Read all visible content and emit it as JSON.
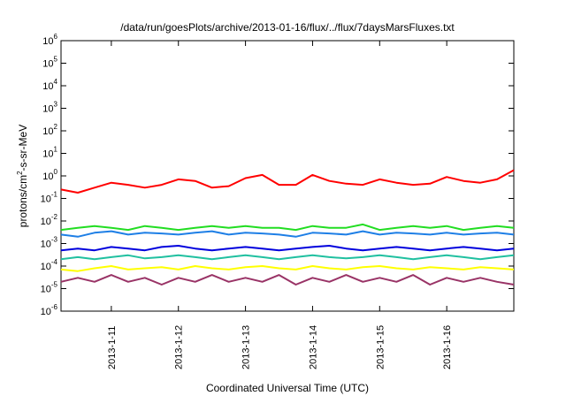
{
  "chart_data": {
    "type": "line",
    "title": "/data/run/goesPlots/archive/2013-01-16/flux/../flux/7daysMarsFluxes.txt",
    "xlabel": "Coordinated Universal Time (UTC)",
    "ylabel": {
      "prefix": "protons/cm",
      "sup": "2",
      "suffix": "-s-sr-MeV"
    },
    "xlim": [
      "2013-01-10 06:00",
      "2013-01-17 00:00"
    ],
    "ylim": [
      1e-06,
      1000000
    ],
    "yscale": "log",
    "grid": false,
    "legend": "none",
    "x_ticks": [
      "2013-1-11",
      "2013-1-12",
      "2013-1-13",
      "2013-1-14",
      "2013-1-15",
      "2013-1-16"
    ],
    "y_ticks": [
      {
        "base": "10",
        "exp": "-6"
      },
      {
        "base": "10",
        "exp": "-5"
      },
      {
        "base": "10",
        "exp": "-4"
      },
      {
        "base": "10",
        "exp": "-3"
      },
      {
        "base": "10",
        "exp": "-2"
      },
      {
        "base": "10",
        "exp": "-1"
      },
      {
        "base": "10",
        "exp": "0"
      },
      {
        "base": "10",
        "exp": "1"
      },
      {
        "base": "10",
        "exp": "2"
      },
      {
        "base": "10",
        "exp": "3"
      },
      {
        "base": "10",
        "exp": "4"
      },
      {
        "base": "10",
        "exp": "5"
      },
      {
        "base": "10",
        "exp": "6"
      }
    ],
    "series": [
      {
        "color": "#ff0000",
        "x": [
          "2013-01-10 06:00",
          "2013-01-10 12:00",
          "2013-01-10 18:00",
          "2013-01-11 00:00",
          "2013-01-11 06:00",
          "2013-01-11 12:00",
          "2013-01-11 18:00",
          "2013-01-12 00:00",
          "2013-01-12 06:00",
          "2013-01-12 12:00",
          "2013-01-12 18:00",
          "2013-01-13 00:00",
          "2013-01-13 06:00",
          "2013-01-13 12:00",
          "2013-01-13 18:00",
          "2013-01-14 00:00",
          "2013-01-14 06:00",
          "2013-01-14 12:00",
          "2013-01-14 18:00",
          "2013-01-15 00:00",
          "2013-01-15 06:00",
          "2013-01-15 12:00",
          "2013-01-15 18:00",
          "2013-01-16 00:00",
          "2013-01-16 06:00",
          "2013-01-16 12:00",
          "2013-01-16 18:00",
          "2013-01-17 00:00"
        ],
        "values": [
          0.25,
          0.18,
          0.3,
          0.5,
          0.4,
          0.3,
          0.4,
          0.7,
          0.6,
          0.3,
          0.35,
          0.8,
          1.1,
          0.4,
          0.4,
          1.1,
          0.6,
          0.45,
          0.4,
          0.7,
          0.5,
          0.4,
          0.45,
          0.9,
          0.6,
          0.5,
          0.7,
          1.8
        ]
      },
      {
        "color": "#22dd22",
        "x": [
          "2013-01-10 06:00",
          "2013-01-10 12:00",
          "2013-01-10 18:00",
          "2013-01-11 00:00",
          "2013-01-11 06:00",
          "2013-01-11 12:00",
          "2013-01-11 18:00",
          "2013-01-12 00:00",
          "2013-01-12 06:00",
          "2013-01-12 12:00",
          "2013-01-12 18:00",
          "2013-01-13 00:00",
          "2013-01-13 06:00",
          "2013-01-13 12:00",
          "2013-01-13 18:00",
          "2013-01-14 00:00",
          "2013-01-14 06:00",
          "2013-01-14 12:00",
          "2013-01-14 18:00",
          "2013-01-15 00:00",
          "2013-01-15 06:00",
          "2013-01-15 12:00",
          "2013-01-15 18:00",
          "2013-01-16 00:00",
          "2013-01-16 06:00",
          "2013-01-16 12:00",
          "2013-01-16 18:00",
          "2013-01-17 00:00"
        ],
        "values": [
          0.004,
          0.005,
          0.006,
          0.005,
          0.004,
          0.006,
          0.005,
          0.004,
          0.005,
          0.006,
          0.005,
          0.006,
          0.005,
          0.005,
          0.004,
          0.006,
          0.005,
          0.005,
          0.007,
          0.004,
          0.005,
          0.006,
          0.005,
          0.006,
          0.004,
          0.005,
          0.006,
          0.005
        ]
      },
      {
        "color": "#1e7fe6",
        "x": [
          "2013-01-10 06:00",
          "2013-01-10 12:00",
          "2013-01-10 18:00",
          "2013-01-11 00:00",
          "2013-01-11 06:00",
          "2013-01-11 12:00",
          "2013-01-11 18:00",
          "2013-01-12 00:00",
          "2013-01-12 06:00",
          "2013-01-12 12:00",
          "2013-01-12 18:00",
          "2013-01-13 00:00",
          "2013-01-13 06:00",
          "2013-01-13 12:00",
          "2013-01-13 18:00",
          "2013-01-14 00:00",
          "2013-01-14 06:00",
          "2013-01-14 12:00",
          "2013-01-14 18:00",
          "2013-01-15 00:00",
          "2013-01-15 06:00",
          "2013-01-15 12:00",
          "2013-01-15 18:00",
          "2013-01-16 00:00",
          "2013-01-16 06:00",
          "2013-01-16 12:00",
          "2013-01-16 18:00",
          "2013-01-17 00:00"
        ],
        "values": [
          0.0025,
          0.002,
          0.003,
          0.0035,
          0.0025,
          0.003,
          0.0028,
          0.0025,
          0.003,
          0.0035,
          0.0025,
          0.003,
          0.0028,
          0.0025,
          0.002,
          0.003,
          0.0028,
          0.0025,
          0.0035,
          0.0025,
          0.003,
          0.0028,
          0.0025,
          0.003,
          0.0025,
          0.0028,
          0.003,
          0.0025
        ]
      },
      {
        "color": "#0000dd",
        "x": [
          "2013-01-10 06:00",
          "2013-01-10 12:00",
          "2013-01-10 18:00",
          "2013-01-11 00:00",
          "2013-01-11 06:00",
          "2013-01-11 12:00",
          "2013-01-11 18:00",
          "2013-01-12 00:00",
          "2013-01-12 06:00",
          "2013-01-12 12:00",
          "2013-01-12 18:00",
          "2013-01-13 00:00",
          "2013-01-13 06:00",
          "2013-01-13 12:00",
          "2013-01-13 18:00",
          "2013-01-14 00:00",
          "2013-01-14 06:00",
          "2013-01-14 12:00",
          "2013-01-14 18:00",
          "2013-01-15 00:00",
          "2013-01-15 06:00",
          "2013-01-15 12:00",
          "2013-01-15 18:00",
          "2013-01-16 00:00",
          "2013-01-16 06:00",
          "2013-01-16 12:00",
          "2013-01-16 18:00",
          "2013-01-17 00:00"
        ],
        "values": [
          0.0005,
          0.0006,
          0.0005,
          0.0007,
          0.0006,
          0.0005,
          0.0007,
          0.0008,
          0.0006,
          0.0005,
          0.0006,
          0.0007,
          0.0006,
          0.0005,
          0.0006,
          0.0007,
          0.0008,
          0.0006,
          0.0005,
          0.0006,
          0.0007,
          0.0006,
          0.0005,
          0.0006,
          0.0007,
          0.0006,
          0.0005,
          0.0006
        ]
      },
      {
        "color": "#20c0a0",
        "x": [
          "2013-01-10 06:00",
          "2013-01-10 12:00",
          "2013-01-10 18:00",
          "2013-01-11 00:00",
          "2013-01-11 06:00",
          "2013-01-11 12:00",
          "2013-01-11 18:00",
          "2013-01-12 00:00",
          "2013-01-12 06:00",
          "2013-01-12 12:00",
          "2013-01-12 18:00",
          "2013-01-13 00:00",
          "2013-01-13 06:00",
          "2013-01-13 12:00",
          "2013-01-13 18:00",
          "2013-01-14 00:00",
          "2013-01-14 06:00",
          "2013-01-14 12:00",
          "2013-01-14 18:00",
          "2013-01-15 00:00",
          "2013-01-15 06:00",
          "2013-01-15 12:00",
          "2013-01-15 18:00",
          "2013-01-16 00:00",
          "2013-01-16 06:00",
          "2013-01-16 12:00",
          "2013-01-16 18:00",
          "2013-01-17 00:00"
        ],
        "values": [
          0.0002,
          0.00025,
          0.0002,
          0.00025,
          0.0003,
          0.00022,
          0.00025,
          0.0003,
          0.00025,
          0.0002,
          0.00025,
          0.0003,
          0.00025,
          0.0002,
          0.00025,
          0.0003,
          0.00025,
          0.00022,
          0.00025,
          0.0003,
          0.00025,
          0.0002,
          0.00025,
          0.0003,
          0.00025,
          0.0002,
          0.00025,
          0.0003
        ]
      },
      {
        "color": "#ffff00",
        "x": [
          "2013-01-10 06:00",
          "2013-01-10 12:00",
          "2013-01-10 18:00",
          "2013-01-11 00:00",
          "2013-01-11 06:00",
          "2013-01-11 12:00",
          "2013-01-11 18:00",
          "2013-01-12 00:00",
          "2013-01-12 06:00",
          "2013-01-12 12:00",
          "2013-01-12 18:00",
          "2013-01-13 00:00",
          "2013-01-13 06:00",
          "2013-01-13 12:00",
          "2013-01-13 18:00",
          "2013-01-14 00:00",
          "2013-01-14 06:00",
          "2013-01-14 12:00",
          "2013-01-14 18:00",
          "2013-01-15 00:00",
          "2013-01-15 06:00",
          "2013-01-15 12:00",
          "2013-01-15 18:00",
          "2013-01-16 00:00",
          "2013-01-16 06:00",
          "2013-01-16 12:00",
          "2013-01-16 18:00",
          "2013-01-17 00:00"
        ],
        "values": [
          7e-05,
          6e-05,
          8e-05,
          0.0001,
          7e-05,
          8e-05,
          9e-05,
          7e-05,
          0.0001,
          8e-05,
          7e-05,
          9e-05,
          0.0001,
          8e-05,
          7e-05,
          0.0001,
          8e-05,
          7e-05,
          9e-05,
          0.0001,
          8e-05,
          7e-05,
          9e-05,
          8e-05,
          7e-05,
          9e-05,
          8e-05,
          7e-05
        ]
      },
      {
        "color": "#993366",
        "x": [
          "2013-01-10 06:00",
          "2013-01-10 12:00",
          "2013-01-10 18:00",
          "2013-01-11 00:00",
          "2013-01-11 06:00",
          "2013-01-11 12:00",
          "2013-01-11 18:00",
          "2013-01-12 00:00",
          "2013-01-12 06:00",
          "2013-01-12 12:00",
          "2013-01-12 18:00",
          "2013-01-13 00:00",
          "2013-01-13 06:00",
          "2013-01-13 12:00",
          "2013-01-13 18:00",
          "2013-01-14 00:00",
          "2013-01-14 06:00",
          "2013-01-14 12:00",
          "2013-01-14 18:00",
          "2013-01-15 00:00",
          "2013-01-15 06:00",
          "2013-01-15 12:00",
          "2013-01-15 18:00",
          "2013-01-16 00:00",
          "2013-01-16 06:00",
          "2013-01-16 12:00",
          "2013-01-16 18:00",
          "2013-01-17 00:00"
        ],
        "values": [
          2e-05,
          3e-05,
          2e-05,
          4e-05,
          2e-05,
          3e-05,
          1.5e-05,
          3e-05,
          2e-05,
          4e-05,
          2e-05,
          3e-05,
          2e-05,
          4e-05,
          1.5e-05,
          3e-05,
          2e-05,
          4e-05,
          2e-05,
          3e-05,
          2e-05,
          4e-05,
          1.5e-05,
          3e-05,
          2e-05,
          3e-05,
          2e-05,
          1.5e-05
        ]
      }
    ]
  }
}
